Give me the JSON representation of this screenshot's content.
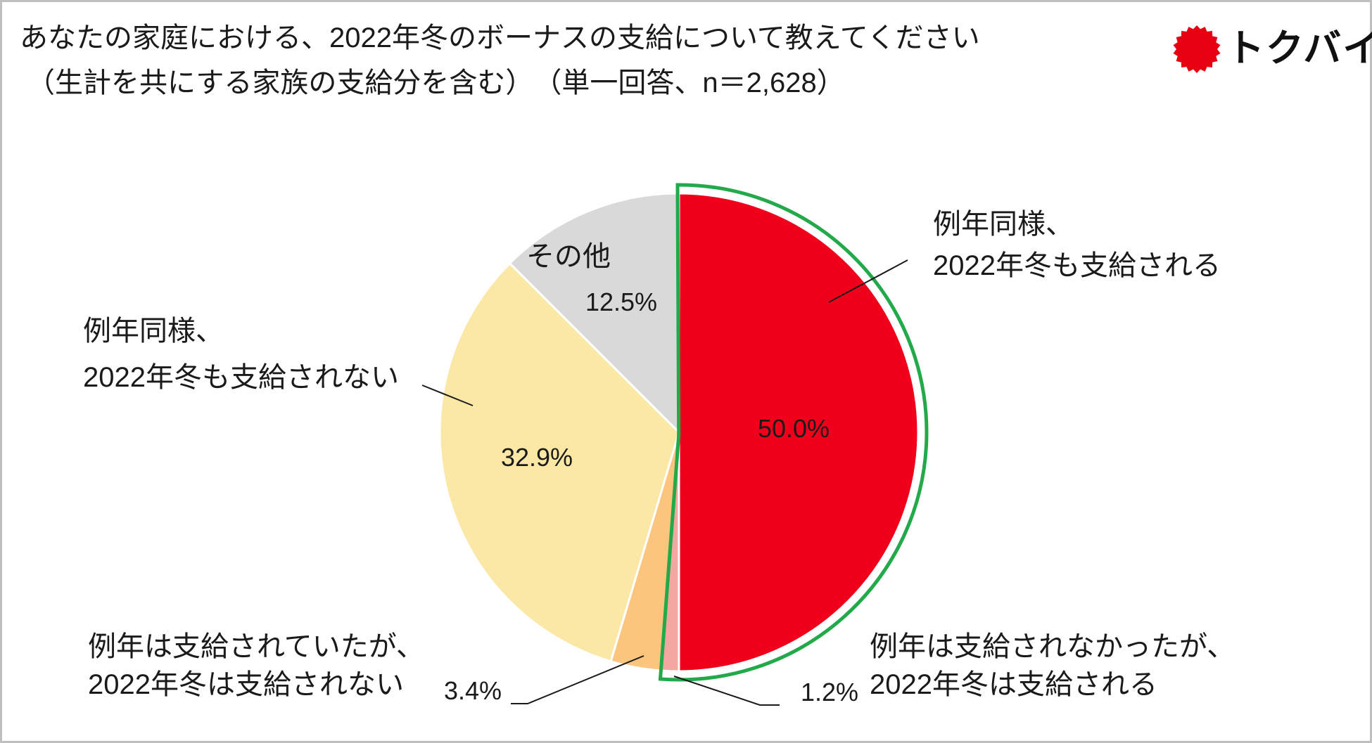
{
  "title": {
    "line1": "あなたの家庭における、2022年冬のボーナスの支給について教えてください",
    "line2": "（生計を共にする家族の支給分を含む）　（単一回答、n＝2,628）"
  },
  "logo": {
    "text": "トクバイ",
    "mark_color": "#e60012"
  },
  "chart_data": {
    "type": "pie",
    "start": "12 o'clock",
    "direction": "clockwise",
    "highlight": {
      "slice_index": [
        0,
        1
      ],
      "border_color": "#22a94a"
    },
    "slices": [
      {
        "label_lines": [
          "例年同様、",
          "2022年冬も支給される"
        ],
        "value": 50.0,
        "value_label": "50.0%",
        "color": "#f0001b"
      },
      {
        "label_lines": [
          "例年は支給されなかったが、",
          "2022年冬は支給される"
        ],
        "value": 1.2,
        "value_label": "1.2%",
        "color": "#f4a6a0"
      },
      {
        "label_lines": [
          "例年は支給されていたが、",
          "2022年冬は支給されない"
        ],
        "value": 3.4,
        "value_label": "3.4%",
        "color": "#fbc57e"
      },
      {
        "label_lines": [
          "例年同様、",
          "2022年冬も支給されない"
        ],
        "value": 32.9,
        "value_label": "32.9%",
        "color": "#fbe8a6"
      },
      {
        "label_lines": [
          "その他"
        ],
        "value": 12.5,
        "value_label": "12.5%",
        "color": "#d9d9d9"
      }
    ]
  }
}
